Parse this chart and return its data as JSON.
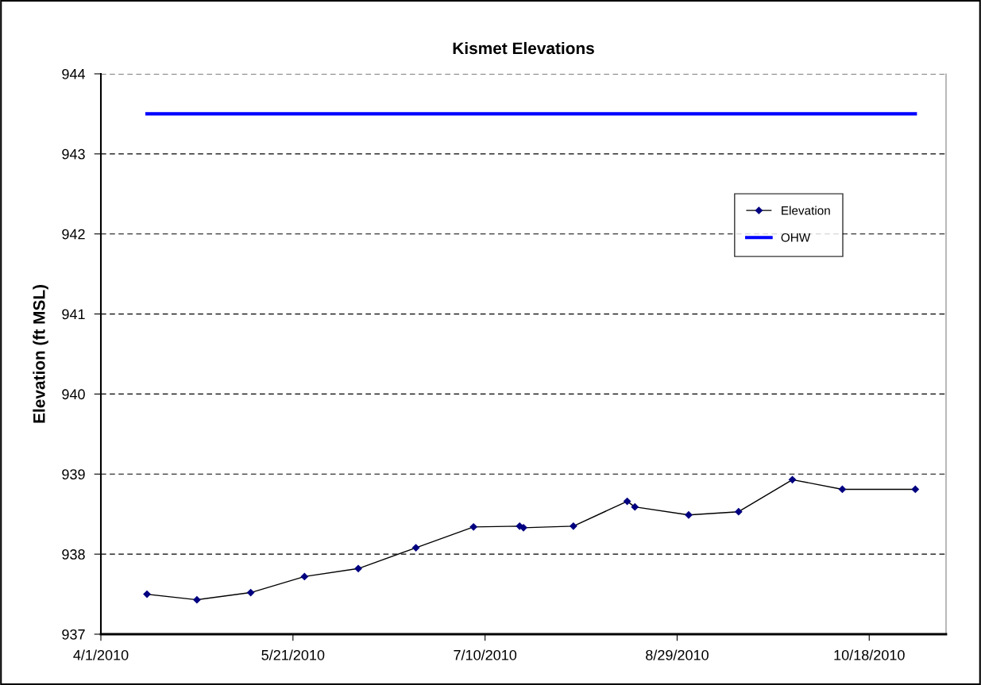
{
  "chart_data": {
    "type": "line",
    "title": "Kismet Elevations",
    "ylabel": "Elevation (ft MSL)",
    "xlim": [
      "2010-04-01",
      "2010-11-07"
    ],
    "xticks": [
      {
        "value": "2010-04-01",
        "label": "4/1/2010"
      },
      {
        "value": "2010-05-21",
        "label": "5/21/2010"
      },
      {
        "value": "2010-07-10",
        "label": "7/10/2010"
      },
      {
        "value": "2010-08-29",
        "label": "8/29/2010"
      },
      {
        "value": "2010-10-18",
        "label": "10/18/2010"
      }
    ],
    "ylim": [
      937,
      944
    ],
    "yticks": [
      937,
      938,
      939,
      940,
      941,
      942,
      943,
      944
    ],
    "grid": "y",
    "legend": "right",
    "series": [
      {
        "name": "Elevation",
        "color": "#000080",
        "marker": "diamond",
        "x": [
          "2010-04-13",
          "2010-04-26",
          "2010-05-10",
          "2010-05-24",
          "2010-06-07",
          "2010-06-22",
          "2010-07-07",
          "2010-07-19",
          "2010-07-20",
          "2010-08-02",
          "2010-08-16",
          "2010-08-18",
          "2010-09-01",
          "2010-09-14",
          "2010-09-28",
          "2010-10-11",
          "2010-10-30"
        ],
        "values": [
          937.5,
          937.43,
          937.52,
          937.72,
          937.82,
          938.08,
          938.34,
          938.35,
          938.33,
          938.35,
          938.66,
          938.59,
          938.49,
          938.53,
          938.93,
          938.81,
          938.81
        ]
      },
      {
        "name": "OHW",
        "color": "#0000ff",
        "marker": "none",
        "x": [
          "2010-04-13",
          "2010-10-30"
        ],
        "values": [
          943.5,
          943.5
        ]
      }
    ]
  }
}
